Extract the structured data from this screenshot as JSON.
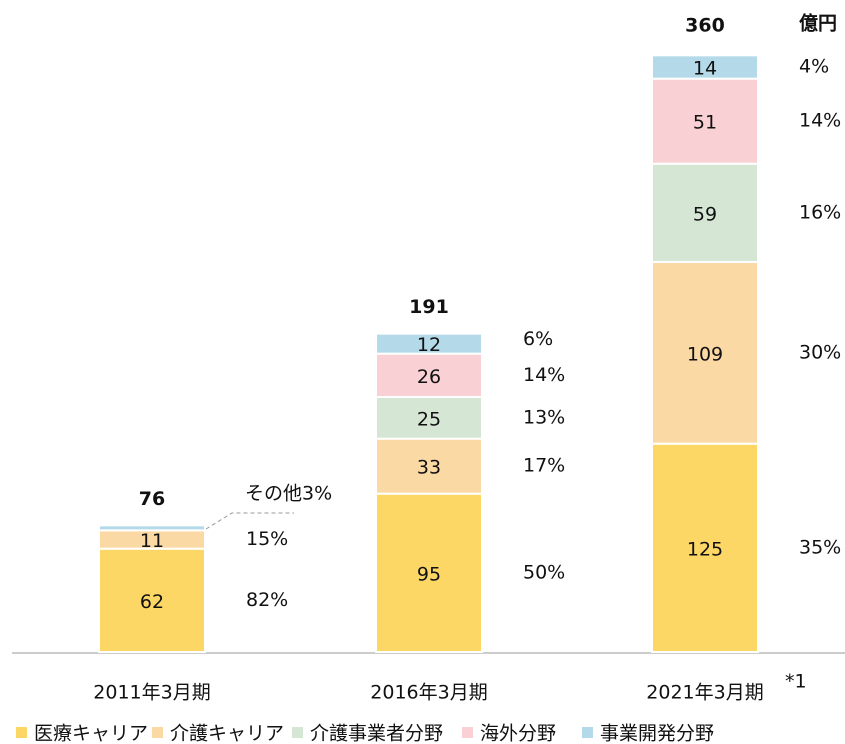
{
  "chart_data": {
    "type": "stacked_bar",
    "unit": "億円",
    "categories": [
      "2011年3月期",
      "2016年3月期",
      "2021年3月期"
    ],
    "category_note": "*1",
    "totals": [
      76,
      191,
      360
    ],
    "other_note": "その他3%",
    "ylim": [
      0,
      360
    ],
    "series": [
      {
        "name": "医療キャリア",
        "color": "#fdd766",
        "values": [
          62,
          95,
          125
        ],
        "share_labels": [
          "82%",
          "50%",
          "35%"
        ]
      },
      {
        "name": "介護キャリア",
        "color": "#fad9a4",
        "values": [
          11,
          33,
          109
        ],
        "share_labels": [
          "15%",
          "17%",
          "30%"
        ]
      },
      {
        "name": "介護事業者分野",
        "color": "#d5e6d5",
        "values": [
          null,
          25,
          59
        ],
        "share_labels": [
          null,
          "13%",
          "16%"
        ]
      },
      {
        "name": "海外分野",
        "color": "#f9d0d3",
        "values": [
          null,
          26,
          51
        ],
        "share_labels": [
          null,
          "14%",
          "14%"
        ]
      },
      {
        "name": "事業開発分野",
        "color": "#b4d9e9",
        "values": [
          3,
          12,
          14
        ],
        "share_labels": [
          null,
          "6%",
          "4%"
        ]
      }
    ]
  }
}
